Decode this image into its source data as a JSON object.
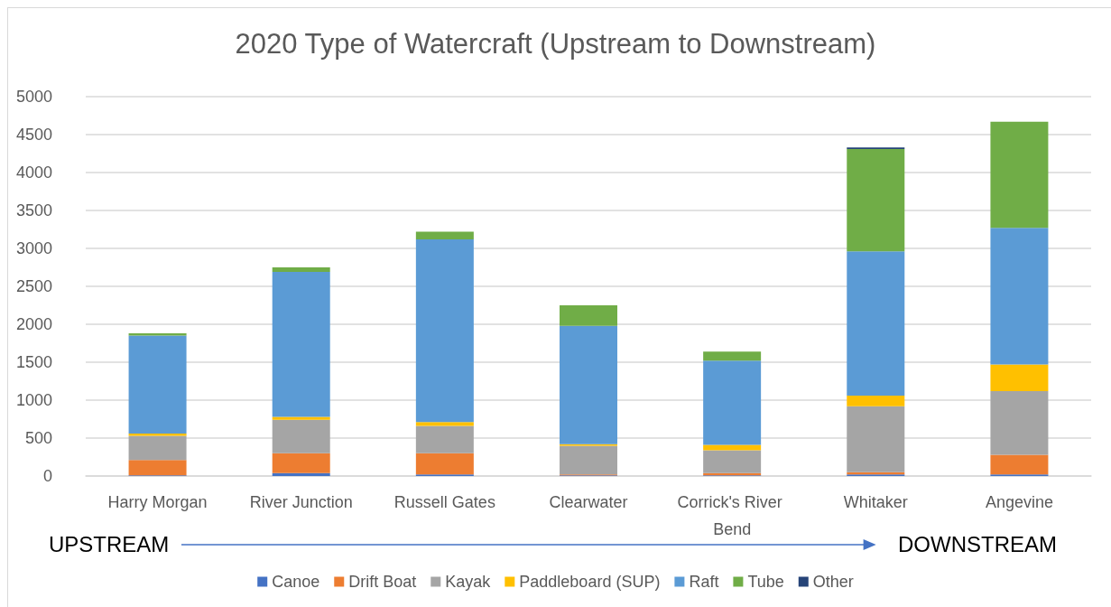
{
  "chart_data": {
    "type": "bar",
    "title": "2020 Type of Watercraft (Upstream to Downstream)",
    "categories": [
      "Harry Morgan",
      "River Junction",
      "Russell Gates",
      "Clearwater",
      "Corrick's River Bend",
      "Whitaker",
      "Angevine"
    ],
    "series": [
      {
        "name": "Canoe",
        "color": "#4472c4",
        "values": [
          10,
          40,
          20,
          10,
          10,
          20,
          20
        ]
      },
      {
        "name": "Drift Boat",
        "color": "#ed7d31",
        "values": [
          200,
          260,
          280,
          10,
          30,
          30,
          260
        ]
      },
      {
        "name": "Kayak",
        "color": "#a5a5a5",
        "values": [
          320,
          440,
          360,
          380,
          300,
          870,
          840
        ]
      },
      {
        "name": "Paddleboard (SUP)",
        "color": "#ffc000",
        "values": [
          30,
          40,
          50,
          20,
          70,
          140,
          350
        ]
      },
      {
        "name": "Raft",
        "color": "#5b9bd5",
        "values": [
          1290,
          1910,
          2410,
          1560,
          1110,
          1900,
          1800
        ]
      },
      {
        "name": "Tube",
        "color": "#70ad47",
        "values": [
          30,
          60,
          100,
          270,
          120,
          1350,
          1400
        ]
      },
      {
        "name": "Other",
        "color": "#264478",
        "values": [
          0,
          0,
          0,
          0,
          0,
          20,
          0
        ]
      }
    ],
    "stacked": true,
    "ylim": [
      0,
      5000
    ],
    "yticks": [
      0,
      500,
      1000,
      1500,
      2000,
      2500,
      3000,
      3500,
      4000,
      4500,
      5000
    ],
    "grid": "y",
    "legend": "bottom",
    "annotations": [
      "UPSTREAM",
      "DOWNSTREAM"
    ]
  }
}
